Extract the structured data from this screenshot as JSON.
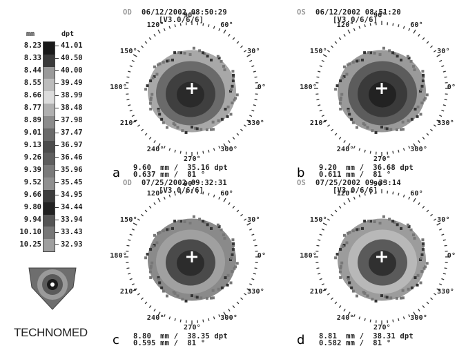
{
  "scale": {
    "mm_header": "mm",
    "dpt_header": "dpt",
    "rows": [
      {
        "mm": "8.23",
        "dpt": "41.01"
      },
      {
        "mm": "8.33",
        "dpt": "40.50"
      },
      {
        "mm": "8.44",
        "dpt": "40.00"
      },
      {
        "mm": "8.55",
        "dpt": "39.49"
      },
      {
        "mm": "8.66",
        "dpt": "38.99"
      },
      {
        "mm": "8.77",
        "dpt": "38.48"
      },
      {
        "mm": "8.89",
        "dpt": "37.98"
      },
      {
        "mm": "9.01",
        "dpt": "37.47"
      },
      {
        "mm": "9.13",
        "dpt": "36.97"
      },
      {
        "mm": "9.26",
        "dpt": "36.46"
      },
      {
        "mm": "9.39",
        "dpt": "35.96"
      },
      {
        "mm": "9.52",
        "dpt": "35.45"
      },
      {
        "mm": "9.66",
        "dpt": "34.95"
      },
      {
        "mm": "9.80",
        "dpt": "34.44"
      },
      {
        "mm": "9.94",
        "dpt": "33.94"
      },
      {
        "mm": "10.10",
        "dpt": "33.43"
      },
      {
        "mm": "10.25",
        "dpt": "32.93"
      }
    ],
    "colors": [
      "#1a1a1a",
      "#3a3a3a",
      "#9a9a9a",
      "#bcbcbc",
      "#dcdcdc",
      "#b0b0b0",
      "#8c8c8c",
      "#6a6a6a",
      "#4c4c4c",
      "#5e5e5e",
      "#7a7a7a",
      "#8f8f8f",
      "#3c3c3c",
      "#222222",
      "#555555",
      "#777777",
      "#9f9f9f"
    ]
  },
  "brand": "TECHNOMED",
  "panels": [
    {
      "id": "a",
      "eye": "OD",
      "datetime": "06/12/2002 08:50:29",
      "version": "[V3.0/6/6]",
      "foot1": "9.60  mm /  35.16 dpt",
      "foot2": "0.637 mm /  81 °",
      "letter": "a"
    },
    {
      "id": "b",
      "eye": "OS",
      "datetime": "06/12/2002 08:51:20",
      "version": "[V3.0/6/6]",
      "foot1": "9.20  mm /  36.68 dpt",
      "foot2": "0.611 mm /  81 °",
      "letter": "b"
    },
    {
      "id": "c",
      "eye": "OD",
      "datetime": "07/25/2002 09:32:31",
      "version": "[V3.0/6/6]",
      "foot1": "8.80  mm /  38.35 dpt",
      "foot2": "0.595 mm /  81 °",
      "letter": "c"
    },
    {
      "id": "d",
      "eye": "OS",
      "datetime": "07/25/2002 09:33:14",
      "version": "[V3.0/6/6]",
      "foot1": "8.81  mm /  38.31 dpt",
      "foot2": "0.582 mm /  81 °",
      "letter": "d"
    }
  ],
  "angles": [
    "0°",
    "30°",
    "60°",
    "90°",
    "120°",
    "150°",
    "180°",
    "210°",
    "240°",
    "270°",
    "300°",
    "330°"
  ]
}
